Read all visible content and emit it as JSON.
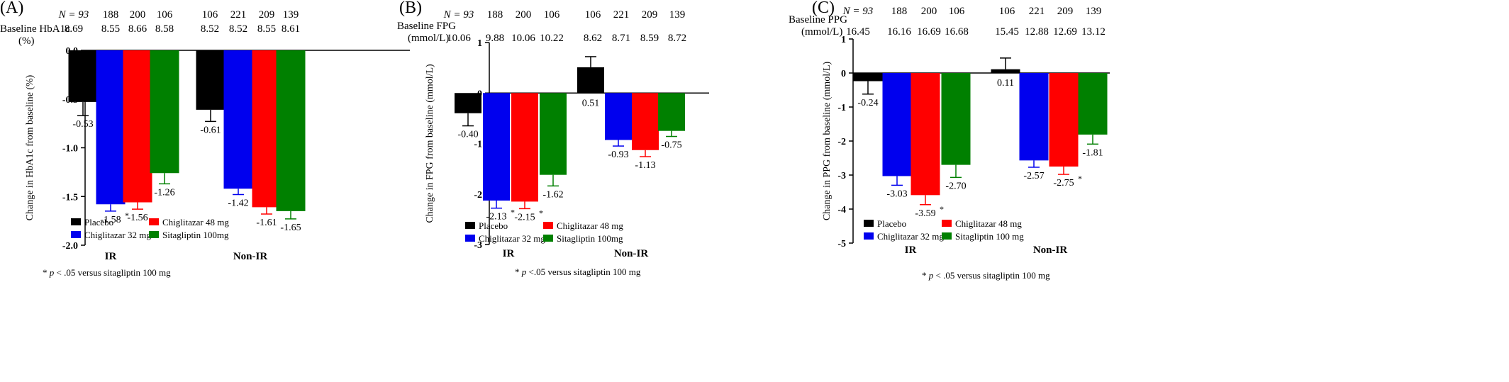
{
  "colors": {
    "placebo": "#000000",
    "chig32": "#0000ee",
    "chig48": "#ff0000",
    "sita": "#008000"
  },
  "groups": [
    "IR",
    "Non-IR"
  ],
  "legend": [
    "Placebo",
    "Chiglitazar 32 mg",
    "Chiglitazar 48 mg",
    "Sitagliptin 100mg"
  ],
  "chart_data": [
    {
      "type": "bar",
      "panel_label": "(A)",
      "ylabel": "Change in HbA1c from baseline (%)",
      "ylim": [
        -2.0,
        0.0
      ],
      "yticks": [
        "0.0",
        "-0.5",
        "-1.0",
        "-1.5",
        "-2.0"
      ],
      "ytick_values": [
        0,
        -0.5,
        -1.0,
        -1.5,
        -2.0
      ],
      "baseline_label_lines": [
        "Baseline HbA1c",
        "(%)"
      ],
      "n_values": [
        "N = 93",
        "188",
        "200",
        "106",
        "106",
        "221",
        "209",
        "139"
      ],
      "baseline_values": [
        "8.69",
        "8.55",
        "8.66",
        "8.58",
        "8.52",
        "8.52",
        "8.55",
        "8.61"
      ],
      "categories": [
        "IR",
        "Non-IR"
      ],
      "series": [
        {
          "name": "Placebo",
          "values": [
            -0.53,
            -0.61
          ],
          "errors": [
            0.14,
            0.12
          ],
          "labels": [
            "-0.53",
            "-0.61"
          ],
          "stars": [
            false,
            false
          ]
        },
        {
          "name": "Chiglitazar 32 mg",
          "values": [
            -1.58,
            -1.42
          ],
          "errors": [
            0.07,
            0.06
          ],
          "labels": [
            "-1.58",
            "-1.42"
          ],
          "stars": [
            true,
            false
          ]
        },
        {
          "name": "Chiglitazar 48 mg",
          "values": [
            -1.56,
            -1.61
          ],
          "errors": [
            0.07,
            0.07
          ],
          "labels": [
            "-1.56",
            "-1.61"
          ],
          "stars": [
            false,
            false
          ]
        },
        {
          "name": "Sitagliptin 100mg",
          "values": [
            -1.26,
            -1.65
          ],
          "errors": [
            0.11,
            0.08
          ],
          "labels": [
            "-1.26",
            "-1.65"
          ],
          "stars": [
            false,
            false
          ]
        }
      ],
      "legend_lines": [
        "Placebo",
        "Chiglitazar 32 mg",
        "Chiglitazar 48 mg",
        "Sitagliptin 100mg"
      ],
      "legend_placement": "bottom-left",
      "footnote": "* p < .05 versus sitagliptin 100 mg"
    },
    {
      "type": "bar",
      "panel_label": "(B)",
      "ylabel": "Change in FPG from baseline (mmol/L)",
      "ylim": [
        -3,
        1
      ],
      "yticks": [
        "1",
        "0",
        "-1",
        "-2",
        "-3"
      ],
      "ytick_values": [
        1,
        0,
        -1,
        -2,
        -3
      ],
      "baseline_label_lines": [
        "Baseline FPG",
        "(mmol/L)"
      ],
      "n_values": [
        "N = 93",
        "188",
        "200",
        "106",
        "106",
        "221",
        "209",
        "139"
      ],
      "baseline_values": [
        "10.06",
        "9.88",
        "10.06",
        "10.22",
        "8.62",
        "8.71",
        "8.59",
        "8.72"
      ],
      "categories": [
        "IR",
        "Non-IR"
      ],
      "series": [
        {
          "name": "Placebo",
          "values": [
            -0.4,
            0.51
          ],
          "errors": [
            0.25,
            0.21
          ],
          "labels": [
            "-0.40",
            "0.51"
          ],
          "stars": [
            false,
            false
          ]
        },
        {
          "name": "Chiglitazar 32 mg",
          "values": [
            -2.13,
            -0.93
          ],
          "errors": [
            0.15,
            0.12
          ],
          "labels": [
            "-2.13",
            "-0.93"
          ],
          "stars": [
            true,
            false
          ]
        },
        {
          "name": "Chiglitazar 48 mg",
          "values": [
            -2.15,
            -1.13
          ],
          "errors": [
            0.14,
            0.13
          ],
          "labels": [
            "-2.15",
            "-1.13"
          ],
          "stars": [
            true,
            false
          ]
        },
        {
          "name": "Sitagliptin 100mg",
          "values": [
            -1.62,
            -0.75
          ],
          "errors": [
            0.22,
            0.11
          ],
          "labels": [
            "-1.62",
            "-0.75"
          ],
          "stars": [
            false,
            false
          ]
        }
      ],
      "legend_lines": [
        "Placebo",
        "Chiglitazar 32 mg",
        "Chiglitazar 48 mg",
        "Sitagliptin 100mg"
      ],
      "legend_placement": "bottom-left",
      "footnote": "* p <.05 versus sitagliptin 100 mg"
    },
    {
      "type": "bar",
      "panel_label": "(C)",
      "ylabel": "Change in PPG from baseline (mmol/L)",
      "ylim": [
        -5,
        1
      ],
      "yticks": [
        "1",
        "0",
        "-1",
        "-2",
        "-3",
        "-4",
        "-5"
      ],
      "ytick_values": [
        1,
        0,
        -1,
        -2,
        -3,
        -4,
        -5
      ],
      "baseline_label_lines": [
        "Baseline PPG",
        "(mmol/L)"
      ],
      "n_values": [
        "N = 93",
        "188",
        "200",
        "106",
        "106",
        "221",
        "209",
        "139"
      ],
      "baseline_values": [
        "16.45",
        "16.16",
        "16.69",
        "16.68",
        "15.45",
        "12.88",
        "12.69",
        "13.12"
      ],
      "categories": [
        "IR",
        "Non-IR"
      ],
      "series": [
        {
          "name": "Placebo",
          "values": [
            -0.24,
            0.11
          ],
          "errors": [
            0.38,
            0.33
          ],
          "labels": [
            "-0.24",
            "0.11"
          ],
          "stars": [
            false,
            false
          ]
        },
        {
          "name": "Chiglitazar 32 mg",
          "values": [
            -3.03,
            -2.57
          ],
          "errors": [
            0.27,
            0.2
          ],
          "labels": [
            "-3.03",
            "-2.57"
          ],
          "stars": [
            false,
            false
          ]
        },
        {
          "name": "Chiglitazar 48 mg",
          "values": [
            -3.59,
            -2.75
          ],
          "errors": [
            0.28,
            0.23
          ],
          "labels": [
            "-3.59",
            "-2.75"
          ],
          "stars": [
            true,
            true
          ]
        },
        {
          "name": "Sitagliptin 100mg",
          "values": [
            -2.7,
            -1.81
          ],
          "errors": [
            0.37,
            0.28
          ],
          "labels": [
            "-2.70",
            "-1.81"
          ],
          "stars": [
            false,
            false
          ]
        }
      ],
      "legend_lines": [
        "Placebo",
        "Chiglitazar 32 mg",
        "Chiglitazar 48 mg",
        "Sitagliptin 100 mg"
      ],
      "legend_placement": "bottom-left",
      "footnote": "* p < .05 versus sitagliptin 100 mg"
    }
  ]
}
